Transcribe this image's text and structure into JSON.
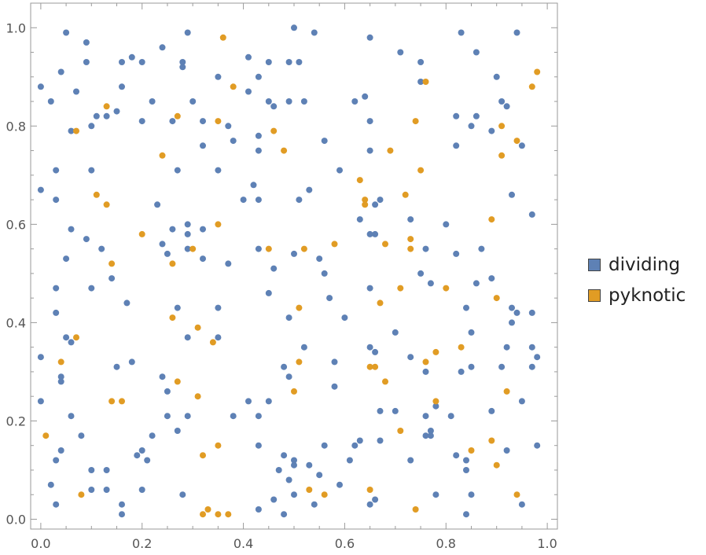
{
  "chart_data": {
    "type": "scatter",
    "title": "",
    "xlabel": "",
    "ylabel": "",
    "xlim": [
      -0.02,
      1.02
    ],
    "ylim": [
      -0.02,
      1.05
    ],
    "x_ticks": [
      "0.0",
      "0.2",
      "0.4",
      "0.6",
      "0.8",
      "1.0"
    ],
    "y_ticks": [
      "0.0",
      "0.2",
      "0.4",
      "0.6",
      "0.8",
      "1.0"
    ],
    "grid": false,
    "legend_position": "right",
    "series": [
      {
        "name": "dividing",
        "color": "#5E81B5",
        "points": [
          [
            0.05,
            0.99
          ],
          [
            0.09,
            0.97
          ],
          [
            0.29,
            0.99
          ],
          [
            0.5,
            1.0
          ],
          [
            0.54,
            0.99
          ],
          [
            0.65,
            0.98
          ],
          [
            0.83,
            0.99
          ],
          [
            0.94,
            0.99
          ],
          [
            0.24,
            0.96
          ],
          [
            0.28,
            0.93
          ],
          [
            0.18,
            0.94
          ],
          [
            0.16,
            0.93
          ],
          [
            0.09,
            0.93
          ],
          [
            0.2,
            0.93
          ],
          [
            0.28,
            0.92
          ],
          [
            0.41,
            0.94
          ],
          [
            0.45,
            0.93
          ],
          [
            0.49,
            0.93
          ],
          [
            0.51,
            0.93
          ],
          [
            0.71,
            0.95
          ],
          [
            0.75,
            0.93
          ],
          [
            0.86,
            0.95
          ],
          [
            0.04,
            0.91
          ],
          [
            0.0,
            0.88
          ],
          [
            0.07,
            0.87
          ],
          [
            0.16,
            0.88
          ],
          [
            0.35,
            0.9
          ],
          [
            0.43,
            0.9
          ],
          [
            0.41,
            0.87
          ],
          [
            0.75,
            0.89
          ],
          [
            0.9,
            0.9
          ],
          [
            0.02,
            0.85
          ],
          [
            0.22,
            0.85
          ],
          [
            0.3,
            0.85
          ],
          [
            0.45,
            0.85
          ],
          [
            0.49,
            0.85
          ],
          [
            0.52,
            0.85
          ],
          [
            0.64,
            0.86
          ],
          [
            0.91,
            0.85
          ],
          [
            0.13,
            0.82
          ],
          [
            0.11,
            0.82
          ],
          [
            0.15,
            0.83
          ],
          [
            0.46,
            0.84
          ],
          [
            0.62,
            0.85
          ],
          [
            0.92,
            0.84
          ],
          [
            0.1,
            0.8
          ],
          [
            0.06,
            0.79
          ],
          [
            0.2,
            0.81
          ],
          [
            0.26,
            0.81
          ],
          [
            0.32,
            0.81
          ],
          [
            0.37,
            0.8
          ],
          [
            0.65,
            0.81
          ],
          [
            0.82,
            0.82
          ],
          [
            0.85,
            0.8
          ],
          [
            0.86,
            0.82
          ],
          [
            0.38,
            0.77
          ],
          [
            0.43,
            0.78
          ],
          [
            0.56,
            0.77
          ],
          [
            0.32,
            0.76
          ],
          [
            0.43,
            0.75
          ],
          [
            0.65,
            0.75
          ],
          [
            0.82,
            0.76
          ],
          [
            0.89,
            0.79
          ],
          [
            0.95,
            0.76
          ],
          [
            0.1,
            0.71
          ],
          [
            0.03,
            0.71
          ],
          [
            0.27,
            0.71
          ],
          [
            0.35,
            0.71
          ],
          [
            0.59,
            0.71
          ],
          [
            0.0,
            0.67
          ],
          [
            0.03,
            0.65
          ],
          [
            0.42,
            0.68
          ],
          [
            0.4,
            0.65
          ],
          [
            0.43,
            0.65
          ],
          [
            0.51,
            0.65
          ],
          [
            0.53,
            0.67
          ],
          [
            0.66,
            0.64
          ],
          [
            0.67,
            0.65
          ],
          [
            0.93,
            0.66
          ],
          [
            0.23,
            0.64
          ],
          [
            0.06,
            0.59
          ],
          [
            0.09,
            0.57
          ],
          [
            0.26,
            0.59
          ],
          [
            0.29,
            0.6
          ],
          [
            0.29,
            0.58
          ],
          [
            0.32,
            0.59
          ],
          [
            0.63,
            0.61
          ],
          [
            0.65,
            0.58
          ],
          [
            0.73,
            0.61
          ],
          [
            0.8,
            0.6
          ],
          [
            0.66,
            0.58
          ],
          [
            0.97,
            0.62
          ],
          [
            0.05,
            0.53
          ],
          [
            0.12,
            0.55
          ],
          [
            0.24,
            0.56
          ],
          [
            0.25,
            0.54
          ],
          [
            0.29,
            0.55
          ],
          [
            0.32,
            0.53
          ],
          [
            0.37,
            0.52
          ],
          [
            0.43,
            0.55
          ],
          [
            0.46,
            0.51
          ],
          [
            0.5,
            0.54
          ],
          [
            0.55,
            0.53
          ],
          [
            0.56,
            0.5
          ],
          [
            0.76,
            0.55
          ],
          [
            0.82,
            0.54
          ],
          [
            0.87,
            0.55
          ],
          [
            0.14,
            0.49
          ],
          [
            0.75,
            0.5
          ],
          [
            0.77,
            0.48
          ],
          [
            0.86,
            0.48
          ],
          [
            0.89,
            0.49
          ],
          [
            0.03,
            0.47
          ],
          [
            0.1,
            0.47
          ],
          [
            0.65,
            0.47
          ],
          [
            0.45,
            0.46
          ],
          [
            0.57,
            0.45
          ],
          [
            0.17,
            0.44
          ],
          [
            0.27,
            0.43
          ],
          [
            0.35,
            0.43
          ],
          [
            0.03,
            0.42
          ],
          [
            0.49,
            0.41
          ],
          [
            0.6,
            0.41
          ],
          [
            0.84,
            0.43
          ],
          [
            0.93,
            0.43
          ],
          [
            0.94,
            0.42
          ],
          [
            0.93,
            0.4
          ],
          [
            0.97,
            0.42
          ],
          [
            0.7,
            0.38
          ],
          [
            0.85,
            0.38
          ],
          [
            0.05,
            0.37
          ],
          [
            0.06,
            0.36
          ],
          [
            0.29,
            0.37
          ],
          [
            0.35,
            0.37
          ],
          [
            0.65,
            0.35
          ],
          [
            0.66,
            0.34
          ],
          [
            0.52,
            0.35
          ],
          [
            0.92,
            0.35
          ],
          [
            0.97,
            0.35
          ],
          [
            0.0,
            0.33
          ],
          [
            0.18,
            0.32
          ],
          [
            0.48,
            0.31
          ],
          [
            0.58,
            0.32
          ],
          [
            0.73,
            0.33
          ],
          [
            0.76,
            0.3
          ],
          [
            0.85,
            0.31
          ],
          [
            0.91,
            0.31
          ],
          [
            0.97,
            0.31
          ],
          [
            0.98,
            0.33
          ],
          [
            0.15,
            0.31
          ],
          [
            0.04,
            0.29
          ],
          [
            0.04,
            0.28
          ],
          [
            0.24,
            0.29
          ],
          [
            0.25,
            0.26
          ],
          [
            0.49,
            0.29
          ],
          [
            0.58,
            0.27
          ],
          [
            0.83,
            0.3
          ],
          [
            0.0,
            0.24
          ],
          [
            0.45,
            0.24
          ],
          [
            0.41,
            0.24
          ],
          [
            0.95,
            0.24
          ],
          [
            0.06,
            0.21
          ],
          [
            0.25,
            0.21
          ],
          [
            0.29,
            0.21
          ],
          [
            0.38,
            0.21
          ],
          [
            0.43,
            0.21
          ],
          [
            0.67,
            0.22
          ],
          [
            0.7,
            0.22
          ],
          [
            0.76,
            0.21
          ],
          [
            0.78,
            0.23
          ],
          [
            0.81,
            0.21
          ],
          [
            0.89,
            0.22
          ],
          [
            0.08,
            0.17
          ],
          [
            0.22,
            0.17
          ],
          [
            0.27,
            0.18
          ],
          [
            0.62,
            0.15
          ],
          [
            0.63,
            0.16
          ],
          [
            0.67,
            0.16
          ],
          [
            0.76,
            0.17
          ],
          [
            0.77,
            0.17
          ],
          [
            0.77,
            0.18
          ],
          [
            0.98,
            0.15
          ],
          [
            0.04,
            0.14
          ],
          [
            0.43,
            0.15
          ],
          [
            0.56,
            0.15
          ],
          [
            0.19,
            0.13
          ],
          [
            0.2,
            0.14
          ],
          [
            0.21,
            0.12
          ],
          [
            0.03,
            0.12
          ],
          [
            0.48,
            0.13
          ],
          [
            0.5,
            0.12
          ],
          [
            0.5,
            0.11
          ],
          [
            0.53,
            0.11
          ],
          [
            0.61,
            0.12
          ],
          [
            0.73,
            0.12
          ],
          [
            0.82,
            0.13
          ],
          [
            0.84,
            0.12
          ],
          [
            0.84,
            0.1
          ],
          [
            0.92,
            0.14
          ],
          [
            0.1,
            0.1
          ],
          [
            0.13,
            0.1
          ],
          [
            0.47,
            0.1
          ],
          [
            0.55,
            0.09
          ],
          [
            0.49,
            0.08
          ],
          [
            0.59,
            0.07
          ],
          [
            0.02,
            0.07
          ],
          [
            0.1,
            0.06
          ],
          [
            0.13,
            0.06
          ],
          [
            0.2,
            0.06
          ],
          [
            0.28,
            0.05
          ],
          [
            0.5,
            0.05
          ],
          [
            0.66,
            0.04
          ],
          [
            0.78,
            0.05
          ],
          [
            0.85,
            0.05
          ],
          [
            0.46,
            0.04
          ],
          [
            0.54,
            0.03
          ],
          [
            0.03,
            0.03
          ],
          [
            0.16,
            0.03
          ],
          [
            0.65,
            0.03
          ],
          [
            0.95,
            0.03
          ],
          [
            0.16,
            0.01
          ],
          [
            0.43,
            0.02
          ],
          [
            0.48,
            0.01
          ],
          [
            0.84,
            0.01
          ]
        ]
      },
      {
        "name": "pyknotic",
        "color": "#E19C24",
        "points": [
          [
            0.36,
            0.98
          ],
          [
            0.38,
            0.88
          ],
          [
            0.76,
            0.89
          ],
          [
            0.98,
            0.91
          ],
          [
            0.97,
            0.88
          ],
          [
            0.13,
            0.84
          ],
          [
            0.27,
            0.82
          ],
          [
            0.35,
            0.81
          ],
          [
            0.07,
            0.79
          ],
          [
            0.46,
            0.79
          ],
          [
            0.74,
            0.81
          ],
          [
            0.91,
            0.8
          ],
          [
            0.94,
            0.77
          ],
          [
            0.24,
            0.74
          ],
          [
            0.48,
            0.75
          ],
          [
            0.69,
            0.75
          ],
          [
            0.91,
            0.74
          ],
          [
            0.75,
            0.71
          ],
          [
            0.63,
            0.69
          ],
          [
            0.72,
            0.66
          ],
          [
            0.11,
            0.66
          ],
          [
            0.13,
            0.64
          ],
          [
            0.64,
            0.65
          ],
          [
            0.64,
            0.64
          ],
          [
            0.2,
            0.58
          ],
          [
            0.35,
            0.6
          ],
          [
            0.89,
            0.61
          ],
          [
            0.3,
            0.55
          ],
          [
            0.45,
            0.55
          ],
          [
            0.52,
            0.55
          ],
          [
            0.58,
            0.56
          ],
          [
            0.68,
            0.56
          ],
          [
            0.73,
            0.57
          ],
          [
            0.73,
            0.55
          ],
          [
            0.14,
            0.52
          ],
          [
            0.26,
            0.52
          ],
          [
            0.71,
            0.47
          ],
          [
            0.8,
            0.47
          ],
          [
            0.9,
            0.45
          ],
          [
            0.67,
            0.44
          ],
          [
            0.51,
            0.43
          ],
          [
            0.26,
            0.41
          ],
          [
            0.31,
            0.39
          ],
          [
            0.07,
            0.37
          ],
          [
            0.34,
            0.36
          ],
          [
            0.83,
            0.35
          ],
          [
            0.78,
            0.34
          ],
          [
            0.04,
            0.32
          ],
          [
            0.51,
            0.32
          ],
          [
            0.65,
            0.31
          ],
          [
            0.66,
            0.31
          ],
          [
            0.76,
            0.32
          ],
          [
            0.68,
            0.28
          ],
          [
            0.27,
            0.28
          ],
          [
            0.31,
            0.25
          ],
          [
            0.5,
            0.26
          ],
          [
            0.92,
            0.26
          ],
          [
            0.14,
            0.24
          ],
          [
            0.16,
            0.24
          ],
          [
            0.78,
            0.24
          ],
          [
            0.71,
            0.18
          ],
          [
            0.01,
            0.17
          ],
          [
            0.89,
            0.16
          ],
          [
            0.35,
            0.15
          ],
          [
            0.32,
            0.13
          ],
          [
            0.85,
            0.14
          ],
          [
            0.9,
            0.11
          ],
          [
            0.53,
            0.06
          ],
          [
            0.65,
            0.06
          ],
          [
            0.08,
            0.05
          ],
          [
            0.56,
            0.05
          ],
          [
            0.94,
            0.05
          ],
          [
            0.33,
            0.02
          ],
          [
            0.74,
            0.02
          ],
          [
            0.32,
            0.01
          ],
          [
            0.35,
            0.01
          ],
          [
            0.37,
            0.01
          ]
        ]
      }
    ]
  }
}
